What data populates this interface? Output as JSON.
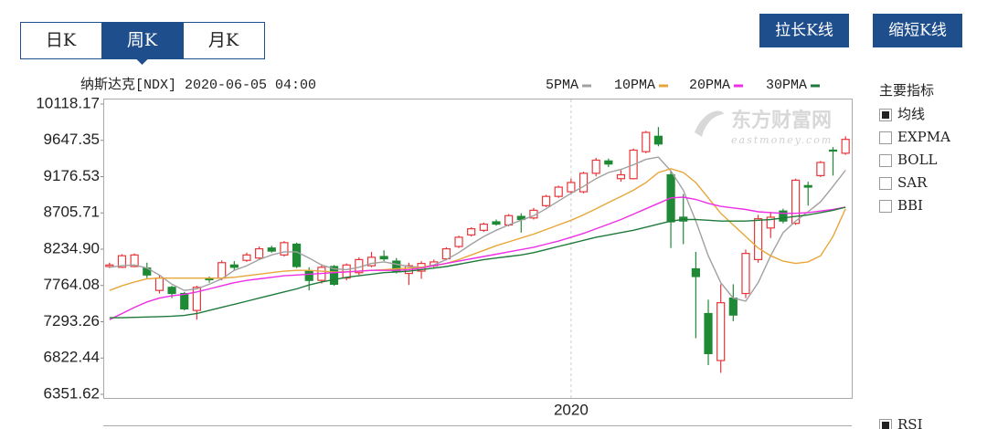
{
  "ui": {
    "tabs": [
      {
        "label": "日K",
        "active": false
      },
      {
        "label": "周K",
        "active": true
      },
      {
        "label": "月K",
        "active": false
      }
    ],
    "buttons": [
      "拉长K线",
      "缩短K线"
    ],
    "indicator_title": "主要指标",
    "indicators": [
      {
        "label": "均线",
        "checked": true
      },
      {
        "label": "EXPMA",
        "checked": false
      },
      {
        "label": "BOLL",
        "checked": false
      },
      {
        "label": "SAR",
        "checked": false
      },
      {
        "label": "BBI",
        "checked": false
      }
    ],
    "sub_indicator": {
      "label": "RSI",
      "checked": true
    },
    "watermark": [
      "东方财富网",
      "eastmoney.com"
    ]
  },
  "chart_data": {
    "type": "candlestick",
    "title": "纳斯达克[NDX] 2020-06-05 04:00",
    "up_color": "#e8363a",
    "down_color": "#1f8a35",
    "categories": [
      null,
      null,
      null,
      null,
      null,
      null,
      null,
      null,
      null,
      null,
      null,
      null,
      null,
      null,
      null,
      null,
      null,
      null,
      null,
      null,
      null,
      null,
      null,
      null,
      null,
      null,
      null,
      null,
      null,
      null,
      null,
      null,
      null,
      null,
      null,
      null,
      null,
      "2020",
      null,
      null,
      null,
      null,
      null,
      null,
      null,
      null,
      null,
      null,
      null,
      null,
      null,
      null,
      null,
      null,
      null,
      null,
      null,
      null,
      null,
      null
    ],
    "open": [
      8010,
      8000,
      8010,
      7990,
      7700,
      7740,
      7660,
      7440,
      7850,
      7860,
      8030,
      8090,
      8120,
      8250,
      8160,
      8300,
      7950,
      7830,
      8010,
      7860,
      7930,
      8020,
      8140,
      8080,
      7920,
      7950,
      8020,
      8110,
      8270,
      8420,
      8480,
      8590,
      8550,
      8660,
      8640,
      8800,
      8920,
      8980,
      8980,
      9220,
      9380,
      9150,
      9150,
      9500,
      9700,
      9200,
      8650,
      7980,
      7400,
      6790,
      7600,
      7660,
      8100,
      8510,
      8730,
      8570,
      9060,
      9190,
      9520,
      9480
    ],
    "high": [
      8060,
      8170,
      8180,
      8060,
      7900,
      7760,
      7680,
      7760,
      7880,
      8090,
      8080,
      8190,
      8270,
      8280,
      8340,
      8320,
      8000,
      8040,
      8030,
      8050,
      8130,
      8200,
      8220,
      8120,
      8060,
      8080,
      8100,
      8260,
      8410,
      8520,
      8580,
      8620,
      8690,
      8700,
      8770,
      8940,
      9060,
      9150,
      9240,
      9420,
      9410,
      9260,
      9540,
      9770,
      9820,
      9250,
      8950,
      8200,
      7580,
      7780,
      7780,
      8230,
      8680,
      8720,
      8760,
      9150,
      9110,
      9380,
      9560,
      9700
    ],
    "low": [
      7990,
      7990,
      8000,
      7860,
      7660,
      7600,
      7440,
      7320,
      7800,
      7830,
      7960,
      8070,
      8100,
      8190,
      8140,
      7990,
      7700,
      7790,
      7760,
      7830,
      7900,
      8000,
      8080,
      7920,
      7770,
      7850,
      8000,
      8090,
      8250,
      8400,
      8460,
      8540,
      8530,
      8450,
      8620,
      8780,
      8900,
      8950,
      8960,
      9180,
      9300,
      9110,
      9140,
      9480,
      9570,
      8250,
      8300,
      7080,
      6730,
      6630,
      7300,
      7600,
      8060,
      8380,
      8570,
      8550,
      8800,
      9170,
      9190,
      9460
    ],
    "close": [
      8030,
      8150,
      8160,
      7900,
      7860,
      7660,
      7460,
      7740,
      7840,
      8060,
      8000,
      8160,
      8240,
      8210,
      8320,
      8010,
      7830,
      8000,
      7780,
      8030,
      8100,
      8130,
      8110,
      7940,
      8020,
      8050,
      8070,
      8240,
      8390,
      8500,
      8560,
      8560,
      8670,
      8620,
      8740,
      8920,
      9040,
      9100,
      9220,
      9390,
      9340,
      9200,
      9520,
      9750,
      9600,
      8590,
      8600,
      7880,
      6880,
      7540,
      7380,
      8180,
      8630,
      8650,
      8600,
      9130,
      9040,
      9360,
      9510,
      9660
    ],
    "series": [
      {
        "name": "5PMA",
        "color": "#a0a0a0",
        "values": [
          8000,
          8020,
          8030,
          7990,
          7900,
          7780,
          7700,
          7720,
          7780,
          7850,
          7960,
          8020,
          8100,
          8160,
          8200,
          8200,
          8120,
          8030,
          7980,
          7970,
          8000,
          8050,
          8070,
          8040,
          8010,
          8000,
          8030,
          8100,
          8190,
          8300,
          8400,
          8480,
          8550,
          8610,
          8670,
          8760,
          8860,
          8960,
          9050,
          9150,
          9230,
          9270,
          9330,
          9400,
          9430,
          9250,
          9000,
          8600,
          8150,
          7800,
          7600,
          7560,
          7800,
          8150,
          8450,
          8600,
          8720,
          8850,
          9050,
          9260
        ]
      },
      {
        "name": "10PMA",
        "color": "#e8a63a",
        "values": [
          7700,
          7760,
          7810,
          7850,
          7860,
          7860,
          7860,
          7860,
          7860,
          7860,
          7870,
          7890,
          7910,
          7930,
          7950,
          7960,
          7960,
          7950,
          7940,
          7940,
          7950,
          7960,
          7970,
          7980,
          7990,
          8000,
          8020,
          8050,
          8100,
          8160,
          8220,
          8280,
          8330,
          8380,
          8430,
          8490,
          8550,
          8610,
          8680,
          8760,
          8840,
          8920,
          9000,
          9100,
          9230,
          9280,
          9230,
          9100,
          8900,
          8700,
          8550,
          8400,
          8250,
          8150,
          8080,
          8050,
          8070,
          8150,
          8400,
          8760
        ]
      },
      {
        "name": "20PMA",
        "color": "#ee2ee6",
        "values": [
          7320,
          7400,
          7480,
          7550,
          7600,
          7630,
          7650,
          7680,
          7720,
          7760,
          7800,
          7830,
          7850,
          7870,
          7890,
          7900,
          7910,
          7920,
          7930,
          7940,
          7950,
          7960,
          7960,
          7960,
          7970,
          7990,
          8020,
          8050,
          8080,
          8110,
          8140,
          8170,
          8200,
          8230,
          8260,
          8300,
          8340,
          8390,
          8440,
          8500,
          8560,
          8620,
          8690,
          8760,
          8830,
          8900,
          8910,
          8880,
          8830,
          8790,
          8770,
          8750,
          8720,
          8710,
          8700,
          8700,
          8710,
          8730,
          8750,
          8780
        ]
      },
      {
        "name": "30PMA",
        "color": "#1f7a3a",
        "values": [
          7345,
          7345,
          7350,
          7355,
          7360,
          7365,
          7375,
          7400,
          7440,
          7480,
          7520,
          7560,
          7600,
          7640,
          7680,
          7720,
          7770,
          7810,
          7840,
          7870,
          7890,
          7910,
          7930,
          7940,
          7950,
          7970,
          7990,
          8010,
          8040,
          8070,
          8100,
          8120,
          8140,
          8160,
          8190,
          8230,
          8270,
          8310,
          8350,
          8390,
          8420,
          8450,
          8480,
          8520,
          8560,
          8600,
          8620,
          8620,
          8610,
          8600,
          8600,
          8600,
          8610,
          8620,
          8640,
          8660,
          8680,
          8710,
          8740,
          8780
        ]
      }
    ],
    "ylim": [
      6351.62,
      10118.17
    ],
    "yticks": [
      6351.62,
      6822.44,
      7293.26,
      7764.08,
      {
        "value": 8234.9,
        "label": "8234.90"
      },
      8705.71,
      9176.53,
      9647.35,
      10118.17
    ]
  }
}
